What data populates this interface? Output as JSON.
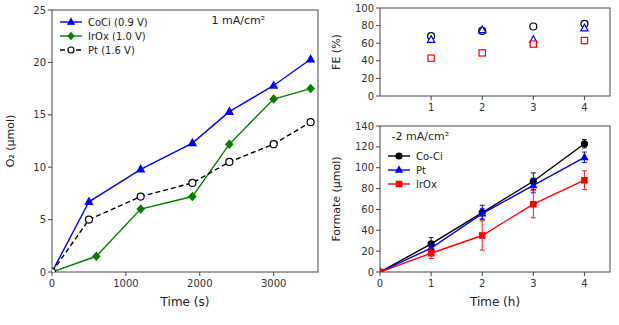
{
  "chart_data": [
    {
      "type": "line",
      "annotation": "1 mA/cm²",
      "xlabel": "Time (s)",
      "ylabel": "O₂ (μmol)",
      "xlim": [
        0,
        3600
      ],
      "ylim": [
        0,
        25
      ],
      "xticks": [
        0,
        1000,
        2000,
        3000
      ],
      "yticks": [
        0,
        5,
        10,
        15,
        20,
        25
      ],
      "grid": false,
      "legend": "upper left",
      "series": [
        {
          "name": "CoCi (0.9 V)",
          "color": "blue",
          "marker": "triangle",
          "line_style": "solid",
          "x": [
            0,
            500,
            1200,
            1900,
            2400,
            3000,
            3500
          ],
          "values": [
            0,
            6.7,
            9.8,
            12.3,
            15.3,
            17.8,
            20.3
          ]
        },
        {
          "name": "IrOx (1.0 V)",
          "color": "green",
          "marker": "diamond",
          "line_style": "solid",
          "x": [
            0,
            600,
            1200,
            1900,
            2400,
            3000,
            3500
          ],
          "values": [
            0,
            1.5,
            6.0,
            7.2,
            12.2,
            16.5,
            17.5
          ]
        },
        {
          "name": "Pt (1.6 V)",
          "color": "black",
          "marker": "open-circle",
          "line_style": "dashed",
          "x": [
            0,
            500,
            1200,
            1900,
            2400,
            3000,
            3500
          ],
          "values": [
            0,
            5.0,
            7.2,
            8.5,
            10.5,
            12.2,
            14.3
          ]
        }
      ]
    },
    {
      "type": "scatter",
      "ylabel": "FE (%)",
      "xlim": [
        0,
        4.5
      ],
      "ylim": [
        0,
        100
      ],
      "xticks": [
        1,
        2,
        3,
        4
      ],
      "yticks": [
        0,
        20,
        40,
        60,
        80,
        100
      ],
      "grid": false,
      "series": [
        {
          "color": "black",
          "marker": "open-circle",
          "line_style": "none",
          "x": [
            1,
            2,
            3,
            4
          ],
          "values": [
            68,
            74,
            79,
            82
          ]
        },
        {
          "color": "blue",
          "marker": "open-triangle",
          "line_style": "none",
          "x": [
            1,
            2,
            3,
            4
          ],
          "values": [
            64,
            75,
            64,
            77
          ]
        },
        {
          "color": "red",
          "marker": "open-square",
          "line_style": "none",
          "x": [
            1,
            2,
            3,
            4
          ],
          "values": [
            43,
            49,
            59,
            63
          ]
        }
      ]
    },
    {
      "type": "line",
      "annotation": "-2 mA/cm²",
      "xlabel": "Time (h)",
      "ylabel": "Formate (μmol)",
      "xlim": [
        0,
        4.5
      ],
      "ylim": [
        0,
        140
      ],
      "xticks": [
        0,
        1,
        2,
        3,
        4
      ],
      "yticks": [
        0,
        20,
        40,
        60,
        80,
        100,
        120,
        140
      ],
      "grid": false,
      "legend": "upper left",
      "series": [
        {
          "name": "Co-Ci",
          "color": "black",
          "marker": "circle",
          "line_style": "solid",
          "x": [
            0,
            1,
            2,
            3,
            4
          ],
          "values": [
            0,
            27,
            57,
            87,
            123
          ],
          "errors": [
            0,
            6,
            7,
            8,
            4
          ]
        },
        {
          "name": "Pt",
          "color": "blue",
          "marker": "triangle",
          "line_style": "solid",
          "x": [
            0,
            1,
            2,
            3,
            4
          ],
          "values": [
            0,
            23,
            56,
            83,
            110
          ],
          "errors": [
            0,
            4,
            5,
            7,
            5
          ]
        },
        {
          "name": "IrOx",
          "color": "red",
          "marker": "square",
          "line_style": "solid",
          "x": [
            0,
            1,
            2,
            3,
            4
          ],
          "values": [
            0,
            18,
            35,
            65,
            88
          ],
          "errors": [
            0,
            5,
            14,
            13,
            9
          ]
        }
      ]
    }
  ]
}
